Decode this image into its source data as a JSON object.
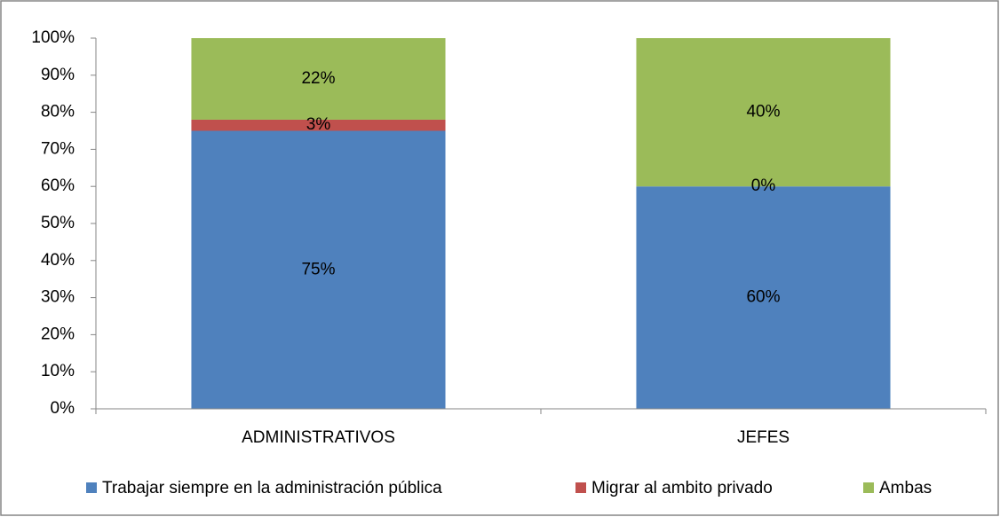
{
  "chart_data": {
    "type": "stacked_bar",
    "categories": [
      "ADMINISTRATIVOS",
      "JEFES"
    ],
    "series": [
      {
        "name": "Trabajar siempre en la administración pública",
        "color": "#4f81bd",
        "values": [
          75,
          60
        ],
        "value_labels": [
          "75%",
          "60%"
        ]
      },
      {
        "name": "Migrar al ambito privado",
        "color": "#c0504d",
        "values": [
          3,
          0
        ],
        "value_labels": [
          "3%",
          "0%"
        ]
      },
      {
        "name": "Ambas",
        "color": "#9bbb59",
        "values": [
          22,
          40
        ],
        "value_labels": [
          "22%",
          "40%"
        ]
      }
    ],
    "ylim": [
      0,
      100
    ],
    "yticks": [
      {
        "value": 0,
        "label": "0%"
      },
      {
        "value": 10,
        "label": "10%"
      },
      {
        "value": 20,
        "label": "20%"
      },
      {
        "value": 30,
        "label": "30%"
      },
      {
        "value": 40,
        "label": "40%"
      },
      {
        "value": 50,
        "label": "50%"
      },
      {
        "value": 60,
        "label": "60%"
      },
      {
        "value": 70,
        "label": "70%"
      },
      {
        "value": 80,
        "label": "80%"
      },
      {
        "value": 90,
        "label": "90%"
      },
      {
        "value": 100,
        "label": "100%"
      }
    ],
    "grid": false,
    "legend": "bottom"
  }
}
